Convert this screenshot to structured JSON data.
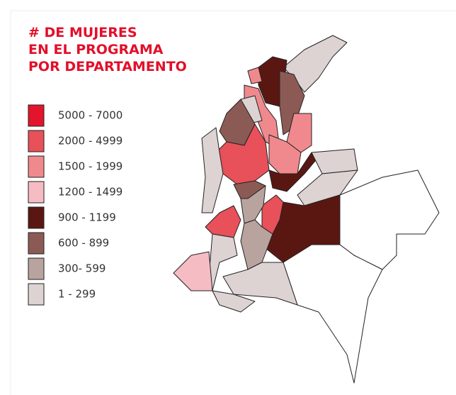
{
  "title": [
    "# DE MUJERES",
    "EN EL PROGRAMA",
    "POR DEPARTAMENTO"
  ],
  "legend": [
    {
      "label": "5000 - 7000",
      "color": "#e3142c"
    },
    {
      "label": "2000 - 4999",
      "color": "#e8505a"
    },
    {
      "label": "1500 - 1999",
      "color": "#f0898d"
    },
    {
      "label": "1200 - 1499",
      "color": "#f6bcc3"
    },
    {
      "label": "900 - 1199",
      "color": "#5a1712"
    },
    {
      "label": "600 - 899",
      "color": "#8c5a55"
    },
    {
      "label": "300- 599",
      "color": "#b9a39f"
    },
    {
      "label": "1 - 299",
      "color": "#ddd3d3"
    }
  ]
}
